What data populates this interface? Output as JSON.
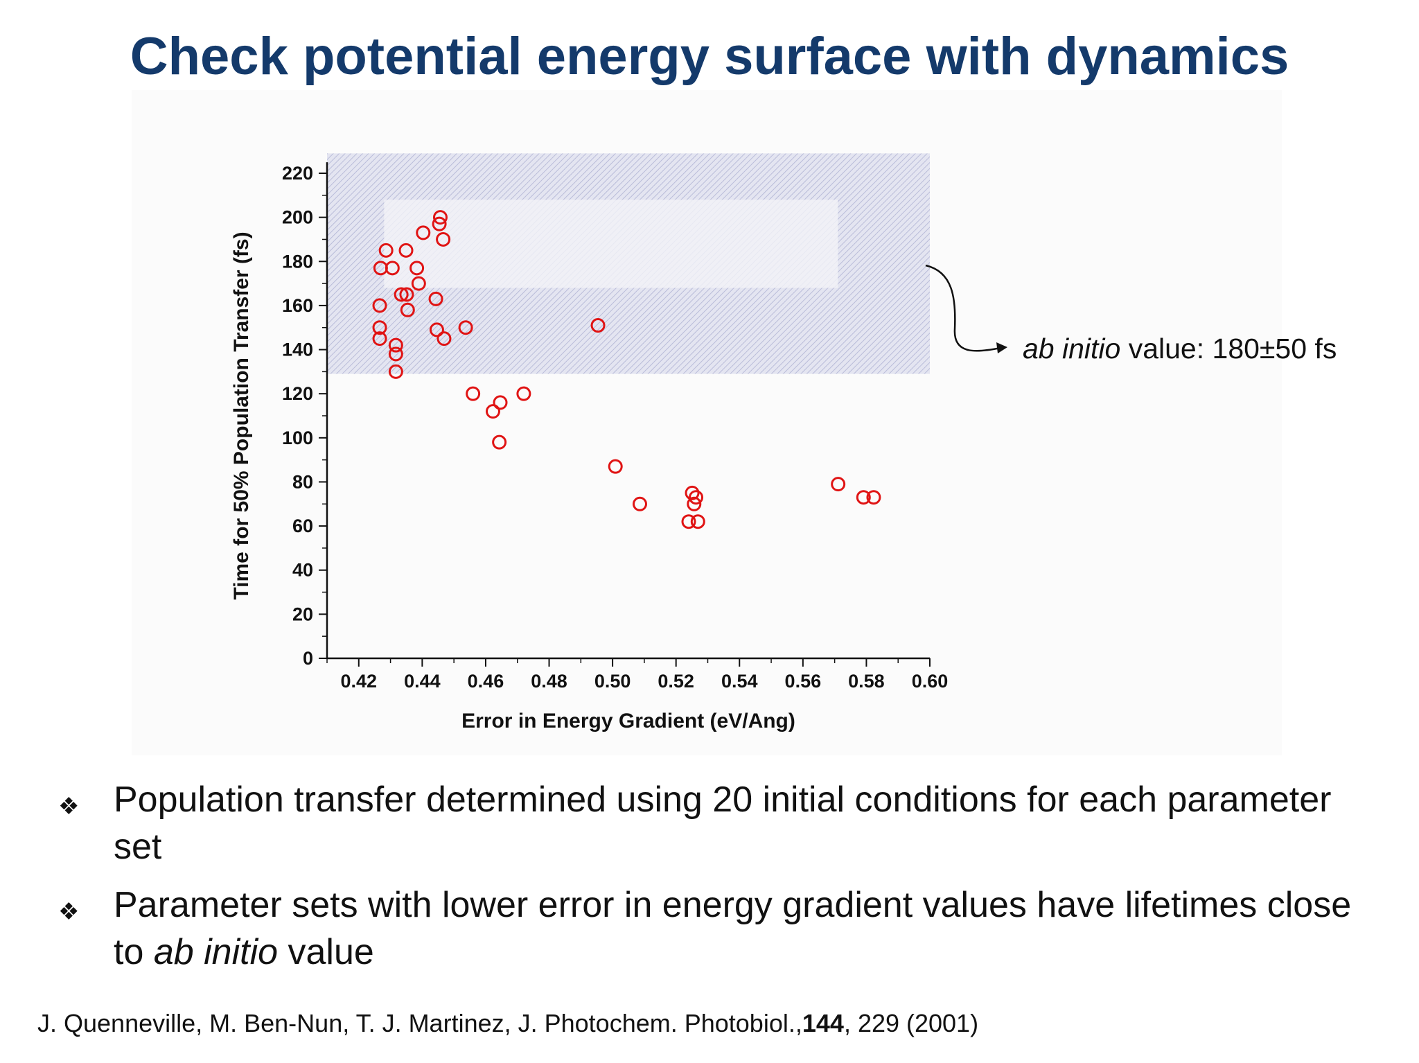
{
  "title": "Check potential energy surface with dynamics",
  "annotation": {
    "italic": "ab initio",
    "rest": " value:  180±50 fs"
  },
  "bullets": [
    {
      "pre": "Population transfer determined using 20 initial conditions for each parameter set",
      "italic": "",
      "post": ""
    },
    {
      "pre": "Parameter sets with lower error in energy gradient values have lifetimes close to ",
      "italic": "ab initio",
      "post": " value"
    }
  ],
  "bullet_icon": "❖",
  "citation": {
    "pre": "J. Quenneville, M. Ben-Nun, T. J. Martinez, J. Photochem. Photobiol.,",
    "bold": "144",
    "post": ", 229 (2001)"
  },
  "colors": {
    "title": "#143a6b",
    "marker": "#e01414",
    "band": "#c9cbe3"
  },
  "chart_data": {
    "type": "scatter",
    "xlabel": "Error in Energy Gradient (eV/Ang)",
    "ylabel": "Time for 50% Population Transfer (fs)",
    "xlim": [
      0.41,
      0.6
    ],
    "ylim": [
      0,
      220
    ],
    "xticks": [
      "0.42",
      "0.44",
      "0.46",
      "0.48",
      "0.50",
      "0.52",
      "0.54",
      "0.56",
      "0.58",
      "0.60"
    ],
    "yticks": [
      "0",
      "20",
      "40",
      "60",
      "80",
      "100",
      "120",
      "140",
      "160",
      "180",
      "200",
      "220"
    ],
    "band": {
      "y_from": 129,
      "y_to": 229,
      "x_from": 0.41,
      "x_to": 0.6
    },
    "points": [
      {
        "x": 0.4266,
        "y": 160
      },
      {
        "x": 0.4266,
        "y": 150
      },
      {
        "x": 0.4266,
        "y": 145
      },
      {
        "x": 0.4269,
        "y": 177
      },
      {
        "x": 0.4286,
        "y": 185
      },
      {
        "x": 0.4306,
        "y": 177
      },
      {
        "x": 0.4317,
        "y": 142
      },
      {
        "x": 0.4317,
        "y": 138
      },
      {
        "x": 0.4317,
        "y": 130
      },
      {
        "x": 0.4334,
        "y": 165
      },
      {
        "x": 0.4349,
        "y": 185
      },
      {
        "x": 0.4351,
        "y": 165
      },
      {
        "x": 0.4354,
        "y": 158
      },
      {
        "x": 0.4383,
        "y": 177
      },
      {
        "x": 0.4389,
        "y": 170
      },
      {
        "x": 0.4403,
        "y": 193
      },
      {
        "x": 0.4443,
        "y": 163
      },
      {
        "x": 0.4446,
        "y": 149
      },
      {
        "x": 0.4454,
        "y": 197
      },
      {
        "x": 0.4457,
        "y": 200
      },
      {
        "x": 0.4469,
        "y": 145
      },
      {
        "x": 0.4466,
        "y": 190
      },
      {
        "x": 0.4537,
        "y": 150
      },
      {
        "x": 0.456,
        "y": 120
      },
      {
        "x": 0.4623,
        "y": 112
      },
      {
        "x": 0.4646,
        "y": 116
      },
      {
        "x": 0.4643,
        "y": 98
      },
      {
        "x": 0.472,
        "y": 120
      },
      {
        "x": 0.4954,
        "y": 151
      },
      {
        "x": 0.5009,
        "y": 87
      },
      {
        "x": 0.5086,
        "y": 70
      },
      {
        "x": 0.524,
        "y": 62
      },
      {
        "x": 0.5251,
        "y": 75
      },
      {
        "x": 0.5257,
        "y": 70
      },
      {
        "x": 0.5263,
        "y": 73
      },
      {
        "x": 0.5269,
        "y": 62
      },
      {
        "x": 0.5711,
        "y": 79
      },
      {
        "x": 0.5791,
        "y": 73
      },
      {
        "x": 0.5823,
        "y": 73
      }
    ]
  }
}
